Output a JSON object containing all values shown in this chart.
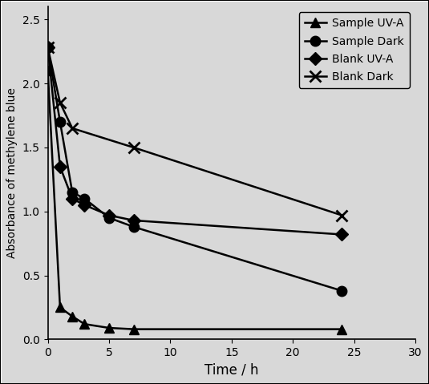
{
  "series": [
    {
      "name": "Sample UV-A",
      "x": [
        0,
        1,
        2,
        3,
        5,
        7,
        24
      ],
      "y": [
        2.1,
        0.25,
        0.18,
        0.12,
        0.09,
        0.08,
        0.08
      ],
      "marker": "^",
      "label": "Sample UV-A",
      "markersize": 9
    },
    {
      "name": "Sample Dark",
      "x": [
        0,
        1,
        2,
        3,
        5,
        7,
        24
      ],
      "y": [
        2.28,
        1.7,
        1.15,
        1.1,
        0.95,
        0.88,
        0.38
      ],
      "marker": "o",
      "label": "Sample Dark",
      "markersize": 9
    },
    {
      "name": "Blank UV-A",
      "x": [
        0,
        1,
        2,
        3,
        5,
        7,
        24
      ],
      "y": [
        2.28,
        1.35,
        1.1,
        1.05,
        0.97,
        0.93,
        0.82
      ],
      "marker": "D",
      "label": "Blank UV-A",
      "markersize": 8
    },
    {
      "name": "Blank Dark",
      "x": [
        0,
        1,
        2,
        7,
        24
      ],
      "y": [
        2.28,
        1.85,
        1.65,
        1.5,
        0.97
      ],
      "marker": "x",
      "label": "Blank Dark",
      "markersize": 10
    }
  ],
  "xlabel": "Time / h",
  "ylabel": "Absorbance of methylene blue",
  "xlim": [
    0,
    30
  ],
  "ylim": [
    0,
    2.6
  ],
  "xticks": [
    0,
    5,
    10,
    15,
    20,
    25,
    30
  ],
  "yticks": [
    0,
    0.5,
    1.0,
    1.5,
    2.0,
    2.5
  ],
  "line_color": "black",
  "background_color": "#d8d8d8",
  "plot_background": "#d8d8d8",
  "linewidth": 1.8,
  "legend_fontsize": 10,
  "xlabel_fontsize": 12,
  "ylabel_fontsize": 10
}
